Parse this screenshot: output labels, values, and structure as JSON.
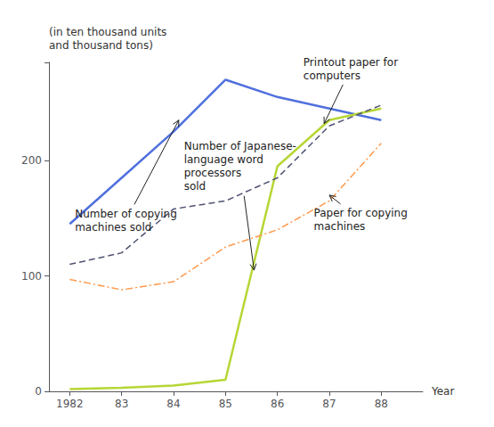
{
  "chart_data": {
    "type": "line",
    "xlabel": "Year",
    "ylabel": "(in ten thousand units\nand thousand tons)",
    "x": [
      1982,
      1983,
      1984,
      1985,
      1986,
      1987,
      1988
    ],
    "xlim": [
      1981.6,
      1988.8
    ],
    "xticks": [
      1982,
      {
        "value": 1983,
        "label": "83"
      },
      {
        "value": 1984,
        "label": "84"
      },
      {
        "value": 1985,
        "label": "85"
      },
      {
        "value": 1986,
        "label": "86"
      },
      {
        "value": 1987,
        "label": "87"
      },
      {
        "value": 1988,
        "label": "88"
      }
    ],
    "ylim": [
      0,
      285
    ],
    "yticks": [
      0,
      100,
      200
    ],
    "grid": false,
    "series": [
      {
        "values": [
          145,
          185,
          225,
          270,
          255,
          245,
          235
        ],
        "line_style": "solid"
      },
      {
        "values": [
          2,
          3,
          5,
          10,
          195,
          235,
          245
        ],
        "line_style": "solid"
      },
      {
        "values": [
          110,
          120,
          158,
          165,
          185,
          230,
          248
        ],
        "line_style": "dashed"
      },
      {
        "values": [
          97,
          88,
          95,
          125,
          140,
          165,
          215
        ],
        "line_style": "dashdot"
      }
    ],
    "annotations": [
      {
        "text": "Number of copying\nmachines sold",
        "xy": [
          1984.1,
          235
        ],
        "xytext": [
          1982.1,
          148
        ]
      },
      {
        "text": "Number of Japanese-\nlanguage word\nprocessors\nsold",
        "xy": [
          1985.55,
          105
        ],
        "xytext": [
          1984.2,
          218
        ]
      },
      {
        "text": "Printout paper for\ncomputers",
        "xy": [
          1986.9,
          232
        ],
        "xytext": [
          1986.5,
          268
        ]
      },
      {
        "text": "Paper for copying\nmachines",
        "xy": [
          1987.0,
          170
        ],
        "xytext": [
          1986.7,
          160
        ]
      }
    ]
  }
}
